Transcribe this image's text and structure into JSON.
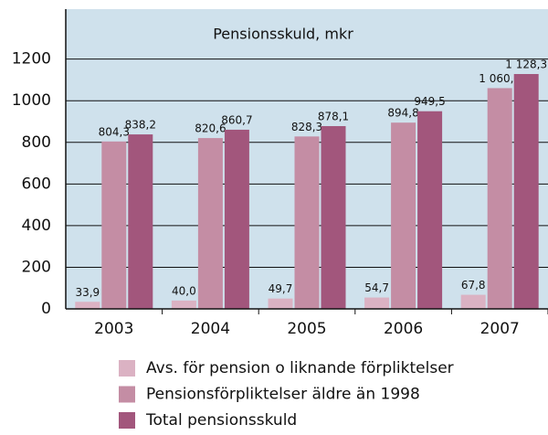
{
  "chart_data": {
    "type": "bar",
    "title": "Pensionsskuld, mkr",
    "categories": [
      "2003",
      "2004",
      "2005",
      "2006",
      "2007"
    ],
    "series": [
      {
        "name": "Avs. för pension o liknande förpliktelser",
        "color": "#dbb2c3",
        "values": [
          33.9,
          40.0,
          49.7,
          54.7,
          67.8
        ],
        "value_labels": [
          "33,9",
          "40,0",
          "49,7",
          "54,7",
          "67,8"
        ]
      },
      {
        "name": "Pensionsförpliktelser äldre än 1998",
        "color": "#c48da4",
        "values": [
          804.3,
          820.6,
          828.3,
          894.8,
          1060.5
        ],
        "value_labels": [
          "804,3",
          "820,6",
          "828,3",
          "894,8",
          "1 060,5"
        ]
      },
      {
        "name": "Total pensionsskuld",
        "color": "#a2567c",
        "values": [
          838.2,
          860.7,
          878.1,
          949.5,
          1128.3
        ],
        "value_labels": [
          "838,2",
          "860,7",
          "878,1",
          "949,5",
          "1 128,3"
        ]
      }
    ],
    "ylim": [
      0,
      1440
    ],
    "yticks": [
      0,
      200,
      400,
      600,
      800,
      1000,
      1200
    ],
    "grid": true,
    "legend": "bottom"
  }
}
